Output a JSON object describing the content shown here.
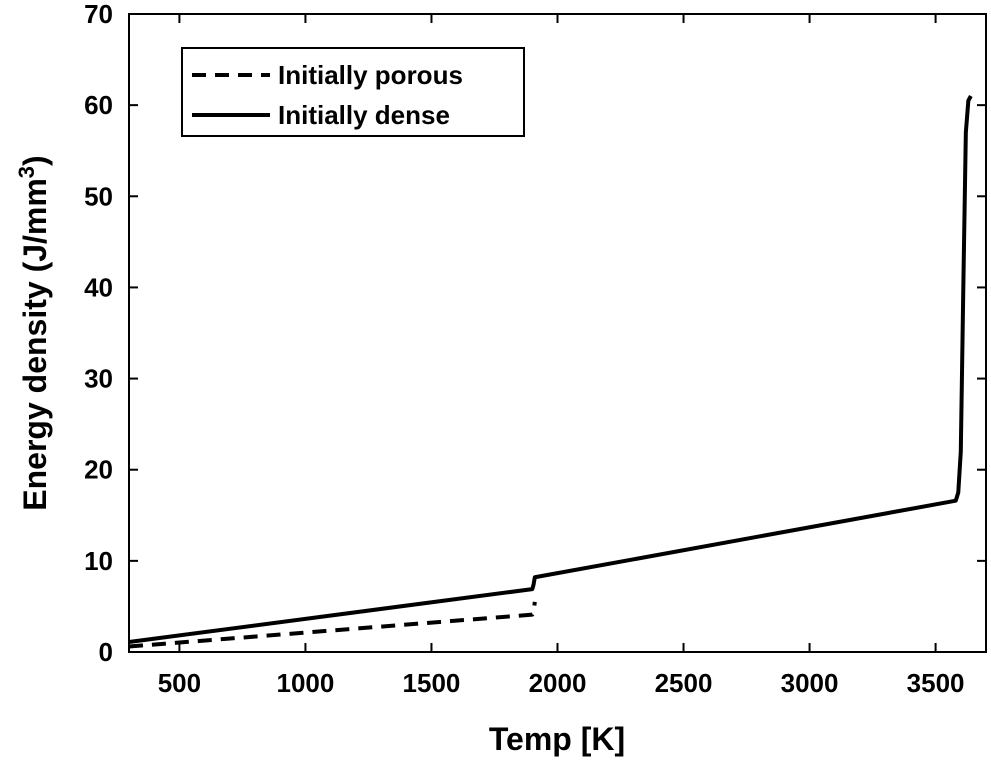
{
  "chart_data": {
    "type": "line",
    "title": "",
    "xlabel": "Temp [K]",
    "ylabel_parts": [
      "Energy density (J/mm",
      "3",
      ")"
    ],
    "xlim": [
      300,
      3700
    ],
    "ylim": [
      0,
      70
    ],
    "xticks": [
      500,
      1000,
      1500,
      2000,
      2500,
      3000,
      3500
    ],
    "yticks": [
      0,
      10,
      20,
      30,
      40,
      50,
      60,
      70
    ],
    "grid": false,
    "legend_position": "top-left",
    "series": [
      {
        "name": "Initially porous",
        "style": "dashed",
        "color": "#000000",
        "points": [
          [
            300,
            0.6
          ],
          [
            1900,
            4.1
          ],
          [
            1905,
            4.4
          ],
          [
            1910,
            5.5
          ]
        ]
      },
      {
        "name": "Initially dense",
        "style": "solid",
        "color": "#000000",
        "points": [
          [
            300,
            1.1
          ],
          [
            1900,
            6.9
          ],
          [
            1905,
            7.4
          ],
          [
            1910,
            8.2
          ],
          [
            3580,
            16.6
          ],
          [
            3590,
            17.5
          ],
          [
            3600,
            22
          ],
          [
            3610,
            40
          ],
          [
            3620,
            57
          ],
          [
            3630,
            60.5
          ],
          [
            3640,
            61
          ]
        ]
      }
    ]
  }
}
